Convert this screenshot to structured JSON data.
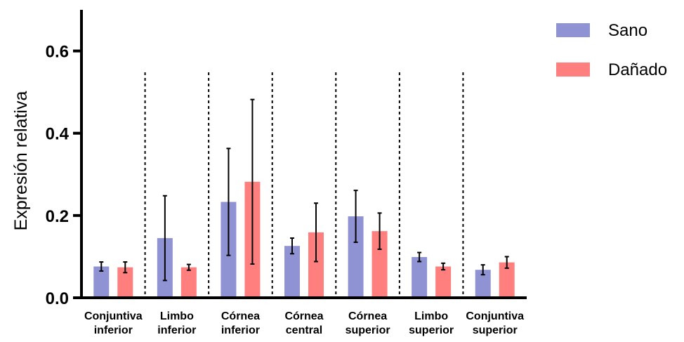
{
  "chart_data": {
    "type": "bar",
    "title": "",
    "xlabel": "",
    "ylabel": "Expresión relativa",
    "ylim": [
      0,
      0.7
    ],
    "yticks": [
      "0.0",
      "0.2",
      "0.4",
      "0.6"
    ],
    "grid": false,
    "legend_position": "top-right",
    "categories": [
      [
        "Conjuntiva",
        "inferior"
      ],
      [
        "Limbo",
        "inferior"
      ],
      [
        "Córnea",
        "inferior"
      ],
      [
        "Córnea",
        "central"
      ],
      [
        "Córnea",
        "superior"
      ],
      [
        "Limbo",
        "superior"
      ],
      [
        "Conjuntiva",
        "superior"
      ]
    ],
    "series": [
      {
        "name": "Sano",
        "color": "#8f93d3",
        "values": [
          0.076,
          0.145,
          0.233,
          0.126,
          0.198,
          0.099,
          0.068
        ],
        "error": [
          0.011,
          0.103,
          0.13,
          0.019,
          0.063,
          0.011,
          0.012
        ]
      },
      {
        "name": "Dañado",
        "color": "#ff7f7f",
        "values": [
          0.074,
          0.074,
          0.282,
          0.159,
          0.162,
          0.076,
          0.086
        ],
        "error": [
          0.013,
          0.007,
          0.2,
          0.071,
          0.044,
          0.008,
          0.014
        ]
      }
    ],
    "separators_after_category": [
      0,
      1,
      2,
      3,
      4,
      5
    ]
  }
}
